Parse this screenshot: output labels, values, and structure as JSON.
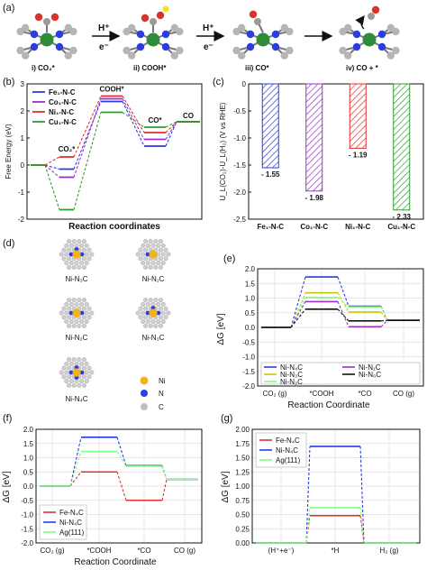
{
  "panel_labels": [
    "(a)",
    "(b)",
    "(c)",
    "(d)",
    "(e)",
    "(f)",
    "(g)"
  ],
  "panel_a": {
    "stages": [
      "i) CO₂*",
      "ii) COOH*",
      "iii) CO*",
      "iv) CO + *"
    ],
    "arrows": [
      {
        "top": "H⁺",
        "bottom": "e⁻"
      },
      {
        "top": "H⁺",
        "bottom": "e⁻"
      }
    ]
  },
  "panel_d": {
    "labels": [
      "Ni-N₃C",
      "Ni-N₁C",
      "Ni-N₂C",
      "Ni-N₃C",
      "Ni-N₄C"
    ],
    "legend": [
      {
        "label": "Ni",
        "color": "#f2b21b"
      },
      {
        "label": "N",
        "color": "#2a3de0"
      },
      {
        "label": "C",
        "color": "#bfbfbf"
      }
    ]
  },
  "chart_data": [
    {
      "id": "b",
      "type": "line",
      "ylabel": "Free Energy (eV)",
      "xlabel": "Reaction coordinates",
      "ylim": [
        -2,
        3
      ],
      "yticks": [
        -2,
        -1,
        0,
        1,
        2,
        3
      ],
      "step_labels": [
        "CO₂*",
        "COOH*",
        "CO*",
        "CO"
      ],
      "label_step_positions": [
        1,
        2,
        3,
        4
      ],
      "series": [
        {
          "name": "Fe₁-N-C",
          "color": "#2a3de0",
          "values": [
            0,
            -0.15,
            2.35,
            0.7,
            1.6
          ]
        },
        {
          "name": "Co₁-N-C",
          "color": "#9b30c8",
          "values": [
            0,
            -0.45,
            2.45,
            0.95,
            1.6
          ]
        },
        {
          "name": "Ni₁-N-C",
          "color": "#e03030",
          "values": [
            0,
            0.3,
            2.55,
            1.2,
            1.6
          ]
        },
        {
          "name": "Cu₁-N-C",
          "color": "#2e9d2e",
          "values": [
            0,
            -1.65,
            1.95,
            1.4,
            1.6
          ]
        }
      ]
    },
    {
      "id": "c",
      "type": "bar",
      "ylabel": "U_L(CO₂)-U_L(H₂) (V vs RHE)",
      "ylim": [
        -2.5,
        0
      ],
      "yticks": [
        0,
        -0.5,
        -1.0,
        -1.5,
        -2.0,
        -2.5
      ],
      "categories": [
        "Fe₁-N-C",
        "Co₁-N-C",
        "Ni₁-N-C",
        "Cu₁-N-C"
      ],
      "values": [
        -1.55,
        -1.98,
        -1.19,
        -2.33
      ],
      "value_labels": [
        "- 1.55",
        "- 1.98",
        "- 1.19",
        "- 2.33"
      ],
      "colors": [
        "#2a3de0",
        "#9b30c8",
        "#e03030",
        "#2e9d2e"
      ]
    },
    {
      "id": "e",
      "type": "line",
      "ylabel": "ΔG [eV]",
      "xlabel": "Reaction Coordinate",
      "ylim": [
        -2.0,
        2.0
      ],
      "yticks": [
        2.0,
        1.5,
        1.0,
        0.5,
        0.0,
        -0.5,
        -1.0,
        -1.5,
        -2.0
      ],
      "categories": [
        "CO₂ (g)",
        "*COOH",
        "*CO",
        "CO (g)"
      ],
      "series": [
        {
          "name": "Ni-N₄C",
          "color": "#2a3de0",
          "values": [
            0,
            1.72,
            0.72,
            0.24
          ]
        },
        {
          "name": "Ni-N₃C",
          "color": "#c8c800",
          "values": [
            0,
            1.18,
            0.52,
            0.24
          ]
        },
        {
          "name": "Ni-N₂C",
          "color": "#7fff7f",
          "values": [
            0,
            1.02,
            0.7,
            0.24
          ]
        },
        {
          "name": "Ni-N₁C",
          "color": "#9b30c8",
          "values": [
            0,
            0.88,
            0.02,
            0.24
          ]
        },
        {
          "name": "Ni-N₀C",
          "color": "#111111",
          "values": [
            0,
            0.62,
            0.22,
            0.24
          ]
        }
      ]
    },
    {
      "id": "f",
      "type": "line",
      "ylabel": "ΔG [eV]",
      "xlabel": "Reaction Coordinate",
      "ylim": [
        -2.0,
        2.0
      ],
      "yticks": [
        2.0,
        1.5,
        1.0,
        0.5,
        0.0,
        -0.5,
        -1.0,
        -1.5,
        -2.0
      ],
      "categories": [
        "CO₂ (g)",
        "*COOH",
        "*CO",
        "CO (g)"
      ],
      "series": [
        {
          "name": "Fe-N₄C",
          "color": "#e03030",
          "values": [
            0,
            0.5,
            -0.5,
            0.24
          ]
        },
        {
          "name": "Ni-N₄C",
          "color": "#2a3de0",
          "values": [
            0,
            1.72,
            0.72,
            0.24
          ]
        },
        {
          "name": "Ag(111)",
          "color": "#7fff7f",
          "values": [
            0,
            1.22,
            0.7,
            0.24
          ]
        }
      ]
    },
    {
      "id": "g",
      "type": "line",
      "ylabel": "ΔG [eV]",
      "ylim": [
        0.0,
        2.0
      ],
      "yticks": [
        2.0,
        1.75,
        1.5,
        1.25,
        1.0,
        0.75,
        0.5,
        0.25,
        0.0
      ],
      "categories": [
        "(H⁺+e⁻)",
        "*H",
        "H₂ (g)"
      ],
      "series": [
        {
          "name": "Fe-N₄C",
          "color": "#e03030",
          "values": [
            0,
            0.48,
            0
          ]
        },
        {
          "name": "Ni-N₄C",
          "color": "#2a3de0",
          "values": [
            0,
            1.7,
            0
          ]
        },
        {
          "name": "Ag(111)",
          "color": "#7fff7f",
          "values": [
            0,
            0.62,
            0
          ]
        }
      ]
    }
  ]
}
